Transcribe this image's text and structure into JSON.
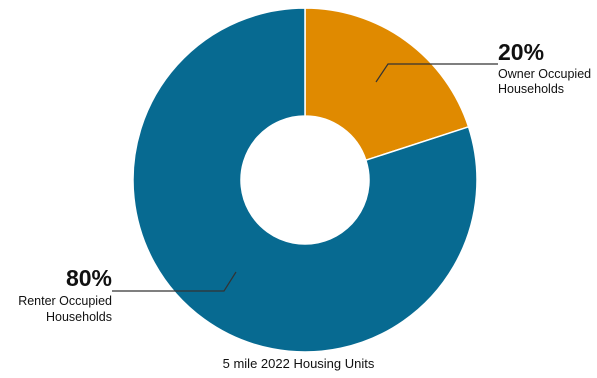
{
  "chart_data": {
    "type": "pie",
    "subtype": "donut",
    "caption": "5 mile 2022 Housing Units",
    "slices": [
      {
        "name": "Owner Occupied Households",
        "value": 20,
        "pct_label": "20%",
        "label_lines": [
          "Owner Occupied",
          "Households"
        ],
        "color": "#E08A00"
      },
      {
        "name": "Renter Occupied Households",
        "value": 80,
        "pct_label": "80%",
        "label_lines": [
          "Renter Occupied",
          "Households"
        ],
        "color": "#076A91"
      }
    ],
    "legend": "none"
  }
}
